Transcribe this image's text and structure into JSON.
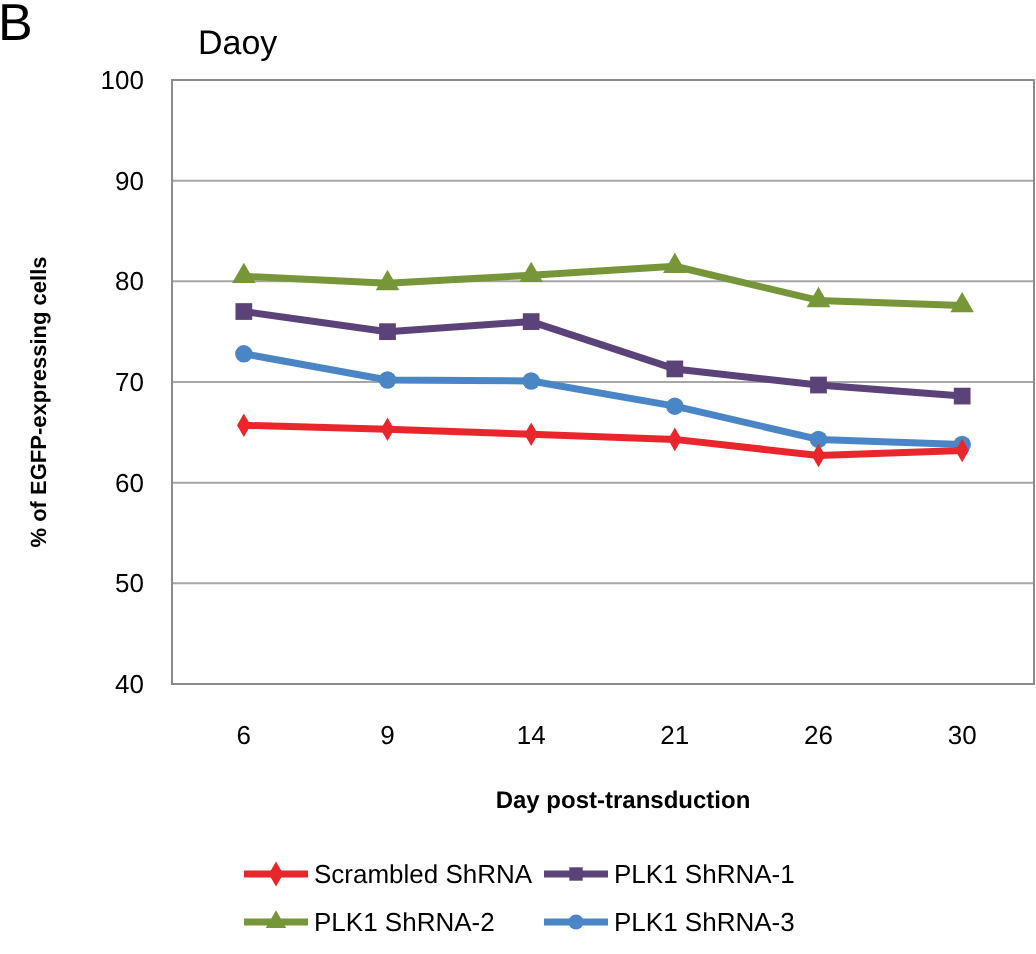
{
  "chart_data": {
    "type": "line",
    "title": "Daoy",
    "xlabel": "Day post-transduction",
    "ylabel": "% of EGFP-expressing  cells",
    "annotations": [
      "B"
    ],
    "categories": [
      "6",
      "9",
      "14",
      "21",
      "26",
      "30"
    ],
    "series": [
      {
        "name": "Scrambled ShRNA",
        "color": "#e8262b",
        "marker": "diamond",
        "values": [
          65.7,
          65.3,
          64.8,
          64.3,
          62.7,
          63.2
        ]
      },
      {
        "name": "PLK1 ShRNA-1",
        "color": "#5b4279",
        "marker": "square",
        "values": [
          77.0,
          75.0,
          76.0,
          71.3,
          69.7,
          68.6
        ]
      },
      {
        "name": "PLK1 ShRNA-2",
        "color": "#77963a",
        "marker": "triangle",
        "values": [
          80.5,
          79.8,
          80.6,
          81.5,
          78.1,
          77.6
        ]
      },
      {
        "name": "PLK1 ShRNA-3",
        "color": "#4a86c6",
        "marker": "circle",
        "values": [
          72.8,
          70.2,
          70.1,
          67.6,
          64.3,
          63.8
        ]
      }
    ],
    "ylim": [
      40,
      100
    ],
    "yticks": [
      40,
      50,
      60,
      70,
      80,
      90,
      100
    ],
    "grid": "y",
    "legend": "bottom",
    "line_style": "solid"
  }
}
